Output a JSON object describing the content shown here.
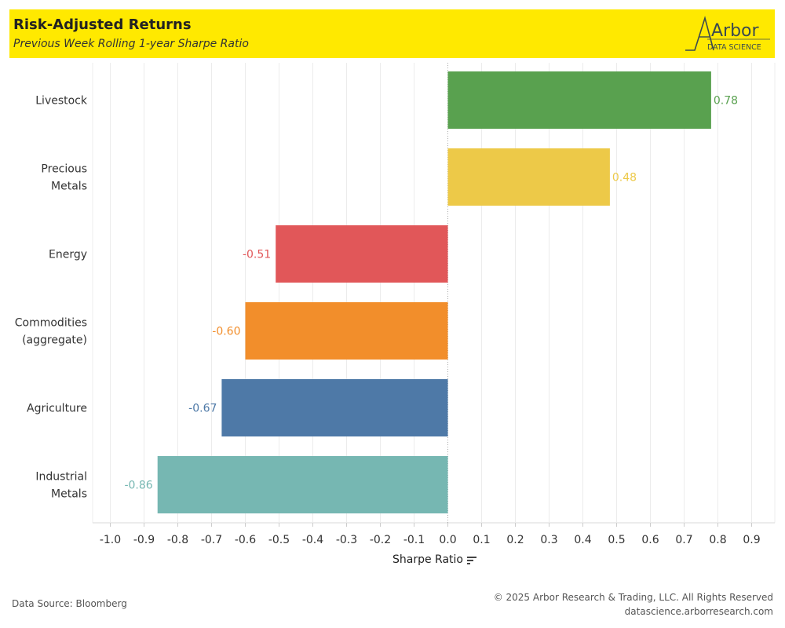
{
  "header": {
    "title": "Risk-Adjusted Returns",
    "subtitle": "Previous Week Rolling 1-year Sharpe Ratio",
    "logo_main": "Arbor",
    "logo_sub": "DATA SCIENCE"
  },
  "chart_data": {
    "type": "bar",
    "orientation": "horizontal",
    "categories": [
      "Livestock",
      "Precious Metals",
      "Energy",
      "Commodities (aggregate)",
      "Agriculture",
      "Industrial Metals"
    ],
    "category_lines": [
      [
        "Livestock"
      ],
      [
        "Precious",
        "Metals"
      ],
      [
        "Energy"
      ],
      [
        "Commodities",
        "(aggregate)"
      ],
      [
        "Agriculture"
      ],
      [
        "Industrial",
        "Metals"
      ]
    ],
    "values": [
      0.78,
      0.48,
      -0.51,
      -0.6,
      -0.67,
      -0.86
    ],
    "value_labels": [
      "0.78",
      "0.48",
      "-0.51",
      "-0.60",
      "-0.67",
      "-0.86"
    ],
    "colors": [
      "#59a14f",
      "#edc948",
      "#e15759",
      "#f28e2b",
      "#4e79a7",
      "#76b7b2"
    ],
    "xlabel": "Sharpe Ratio",
    "xlim": [
      -1.0,
      0.9
    ],
    "xticks": [
      "-1.0",
      "-0.9",
      "-0.8",
      "-0.7",
      "-0.6",
      "-0.5",
      "-0.4",
      "-0.3",
      "-0.2",
      "-0.1",
      "0.0",
      "0.1",
      "0.2",
      "0.3",
      "0.4",
      "0.5",
      "0.6",
      "0.7",
      "0.8",
      "0.9"
    ],
    "grid": true
  },
  "footer": {
    "source": "Data Source: Bloomberg",
    "copyright": "© 2025 Arbor Research & Trading, LLC. All Rights Reserved",
    "url": "datascience.arborresearch.com"
  },
  "icons": {
    "sort": "sort-descending-icon"
  }
}
